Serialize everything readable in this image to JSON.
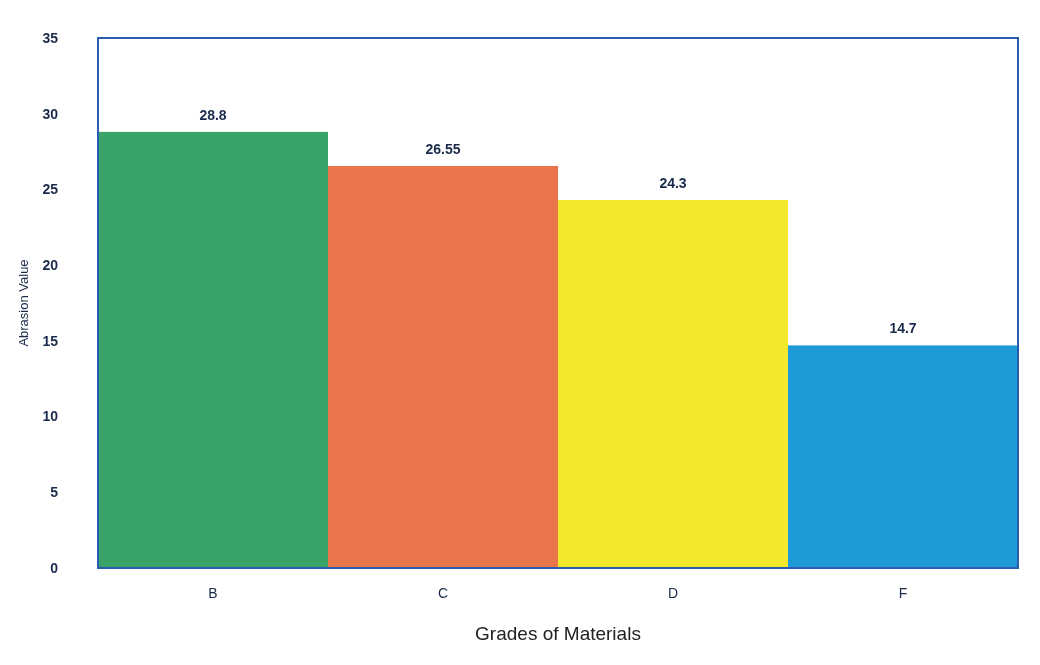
{
  "chart_data": {
    "type": "bar",
    "xlabel": "Grades of Materials",
    "ylabel": "Abrasion Value",
    "categories": [
      "B",
      "C",
      "D",
      "F"
    ],
    "values": [
      28.8,
      26.55,
      24.3,
      14.7
    ],
    "colors": [
      "#3aa36a",
      "#e8764a",
      "#f4e82c",
      "#1f9ad8"
    ],
    "ylim": [
      0,
      35
    ],
    "yticks": [
      0,
      5,
      10,
      15,
      20,
      25,
      30,
      35
    ],
    "data_labels": true,
    "grid": false
  }
}
